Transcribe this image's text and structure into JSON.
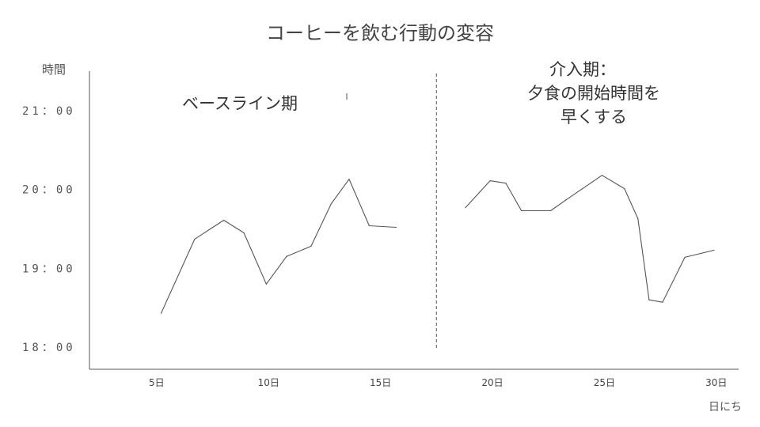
{
  "chart_data": {
    "type": "line",
    "title": "コーヒーを飲む行動の変容",
    "xlabel": "日にち",
    "ylabel": "時間",
    "xlim": [
      2,
      31
    ],
    "ylim": [
      17.72,
      21.5
    ],
    "y_ticks": [
      {
        "value": 18,
        "label": "18：00"
      },
      {
        "value": 19,
        "label": "19：00"
      },
      {
        "value": 20,
        "label": "20：00"
      },
      {
        "value": 21,
        "label": "21：00"
      }
    ],
    "x_ticks": [
      {
        "value": 5,
        "label": "5日"
      },
      {
        "value": 10,
        "label": "10日"
      },
      {
        "value": 15,
        "label": "15日"
      },
      {
        "value": 20,
        "label": "20日"
      },
      {
        "value": 25,
        "label": "25日"
      },
      {
        "value": 30,
        "label": "30日"
      }
    ],
    "phase_change_x": 17.5,
    "phase_labels": {
      "baseline": [
        "ベースライン期"
      ],
      "intervention": [
        "介入期：",
        "夕食の開始時間を",
        "早くする"
      ]
    },
    "series": [
      {
        "values": [
          [
            5.2,
            18.43
          ],
          [
            6.7,
            19.37
          ],
          [
            7.4,
            19.5
          ],
          [
            8.0,
            19.61
          ],
          [
            8.9,
            19.45
          ],
          [
            9.9,
            18.8
          ],
          [
            10.8,
            19.15
          ],
          [
            11.9,
            19.28
          ],
          [
            12.8,
            19.82
          ],
          [
            13.6,
            20.13
          ],
          [
            14.5,
            19.54
          ],
          [
            15.7,
            19.52
          ]
        ]
      },
      {
        "values": [
          [
            18.8,
            19.77
          ],
          [
            19.9,
            20.11
          ],
          [
            20.6,
            20.08
          ],
          [
            21.3,
            19.73
          ],
          [
            22.6,
            19.73
          ],
          [
            23.3,
            19.87
          ],
          [
            24.9,
            20.18
          ],
          [
            25.9,
            20.01
          ],
          [
            26.5,
            19.63
          ],
          [
            27.0,
            18.6
          ],
          [
            27.6,
            18.57
          ],
          [
            28.6,
            19.14
          ],
          [
            29.9,
            19.23
          ]
        ]
      }
    ],
    "colors": {
      "line": "#555555",
      "axis": "#555555",
      "separator": "#555555"
    }
  }
}
